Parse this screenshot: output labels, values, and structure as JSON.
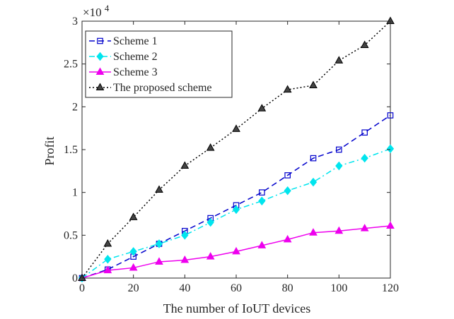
{
  "chart_data": {
    "type": "line",
    "title": "",
    "xlabel": "The number of IoUT devices",
    "ylabel": "Profit",
    "xlim": [
      0,
      120
    ],
    "ylim": [
      0,
      3
    ],
    "xticks": [
      0,
      20,
      40,
      60,
      80,
      100,
      120
    ],
    "yticks": [
      0,
      0.5,
      1,
      1.5,
      2,
      2.5,
      3
    ],
    "ytick_labels": [
      "0",
      "0.5",
      "1",
      "1.5",
      "2",
      "2.5",
      "3"
    ],
    "y_multiplier": "×10",
    "y_multiplier_exponent": "4",
    "grid": false,
    "legend_position": "top-left",
    "x": [
      0,
      10,
      20,
      30,
      40,
      50,
      60,
      70,
      80,
      90,
      100,
      110,
      120
    ],
    "series": [
      {
        "name": "Scheme 1",
        "color": "#0000cc",
        "line_style": "dashed",
        "marker": "square",
        "values": [
          0,
          0.1,
          0.25,
          0.4,
          0.55,
          0.7,
          0.85,
          1.0,
          1.2,
          1.4,
          1.5,
          1.7,
          1.9
        ]
      },
      {
        "name": "Scheme 2",
        "color": "#00e5ee",
        "line_style": "dashdot",
        "marker": "diamond",
        "values": [
          0,
          0.22,
          0.31,
          0.4,
          0.5,
          0.65,
          0.8,
          0.9,
          1.02,
          1.12,
          1.31,
          1.4,
          1.51
        ]
      },
      {
        "name": "Scheme 3",
        "color": "#ee00ee",
        "line_style": "solid",
        "marker": "triangle",
        "values": [
          0,
          0.09,
          0.12,
          0.19,
          0.21,
          0.25,
          0.31,
          0.38,
          0.45,
          0.53,
          0.55,
          0.58,
          0.61
        ]
      },
      {
        "name": "The proposed scheme",
        "color": "#000000",
        "line_style": "dotted",
        "marker": "triangle-filled",
        "values": [
          0,
          0.4,
          0.71,
          1.03,
          1.31,
          1.52,
          1.74,
          1.98,
          2.2,
          2.25,
          2.54,
          2.72,
          3.0
        ]
      }
    ]
  }
}
